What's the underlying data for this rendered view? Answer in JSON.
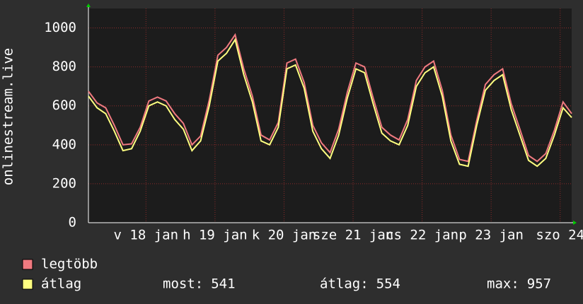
{
  "chart_data": {
    "type": "line",
    "y_label": "onlinestream.live",
    "x": [
      0,
      3,
      6,
      9,
      12,
      15,
      18,
      21,
      24,
      27,
      30,
      33,
      36,
      39,
      42,
      45,
      48,
      51,
      54,
      57,
      60,
      63,
      66,
      69,
      72,
      75,
      78,
      81,
      84,
      87,
      90,
      93,
      96,
      99,
      102,
      105,
      108,
      111,
      114,
      117,
      120,
      123,
      126,
      129,
      132,
      135,
      138,
      141,
      144,
      147,
      150,
      153,
      156,
      159,
      162,
      165,
      168
    ],
    "xlim": [
      0,
      168
    ],
    "xticks": [
      {
        "value": 20,
        "label": "v 18 jan"
      },
      {
        "value": 44,
        "label": "h 19 jan"
      },
      {
        "value": 68,
        "label": "k 20 jan"
      },
      {
        "value": 92,
        "label": "sze 21 jan"
      },
      {
        "value": 116,
        "label": "cs 22 jan"
      },
      {
        "value": 140,
        "label": "p 23 jan"
      },
      {
        "value": 164,
        "label": "szo 24"
      }
    ],
    "ylim": [
      0,
      1100
    ],
    "yticks": [
      0,
      200,
      400,
      600,
      800,
      1000
    ],
    "grid": true,
    "series": [
      {
        "name": "legtöbb",
        "color": "#f07a80",
        "values": [
          675,
          615,
          590,
          500,
          400,
          405,
          490,
          625,
          645,
          625,
          560,
          510,
          400,
          445,
          630,
          860,
          900,
          965,
          790,
          650,
          450,
          425,
          515,
          820,
          840,
          720,
          500,
          410,
          360,
          480,
          670,
          820,
          800,
          640,
          490,
          450,
          425,
          530,
          730,
          800,
          830,
          680,
          450,
          325,
          315,
          525,
          710,
          760,
          790,
          610,
          480,
          345,
          315,
          355,
          475,
          620,
          560
        ]
      },
      {
        "name": "átlag",
        "color": "#ffff80",
        "values": [
          650,
          590,
          560,
          470,
          370,
          380,
          470,
          600,
          620,
          600,
          530,
          480,
          370,
          420,
          600,
          830,
          870,
          940,
          760,
          620,
          420,
          400,
          490,
          790,
          810,
          690,
          470,
          380,
          330,
          450,
          640,
          790,
          770,
          610,
          460,
          420,
          400,
          500,
          700,
          770,
          800,
          650,
          420,
          300,
          290,
          500,
          680,
          730,
          760,
          580,
          450,
          320,
          290,
          330,
          450,
          590,
          540
        ]
      }
    ],
    "stats": [
      {
        "label": "most:",
        "value": 541
      },
      {
        "label": "átlag:",
        "value": 554
      },
      {
        "label": "max:",
        "value": 957
      }
    ]
  }
}
